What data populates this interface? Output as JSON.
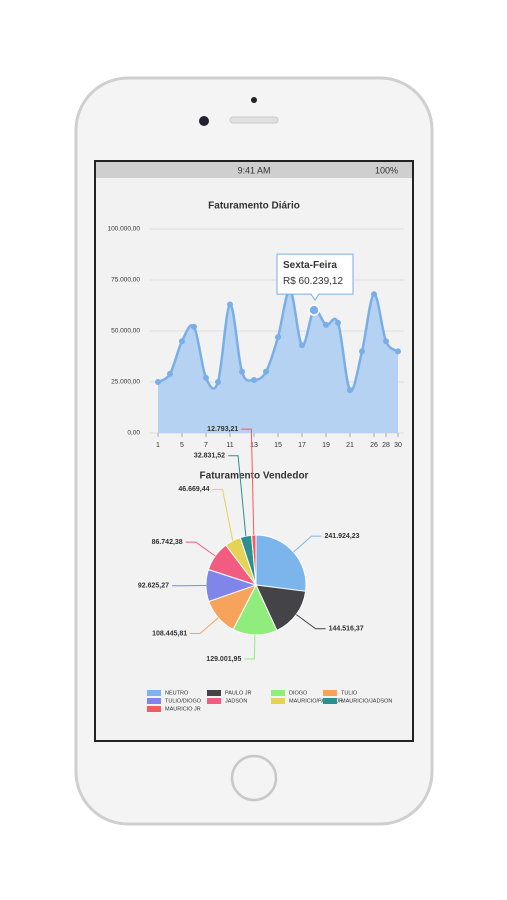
{
  "status_bar": {
    "time": "9:41 AM",
    "battery": "100%"
  },
  "chart_data": [
    {
      "type": "line",
      "title": "Faturamento Diário",
      "color": "#7aaee6",
      "fill": "#b5d2f2",
      "grid": true,
      "categories": [
        "1",
        null,
        "5",
        null,
        "7",
        null,
        "11",
        null,
        "13",
        null,
        "15",
        null,
        "17",
        null,
        "19",
        null,
        "21",
        null,
        "26",
        "28",
        "30"
      ],
      "values": [
        25000,
        29000,
        45000,
        52000,
        27000,
        25000,
        63000,
        30000,
        26000,
        30000,
        47000,
        70000,
        43000,
        60239.12,
        53000,
        54000,
        21000,
        40000,
        68000,
        45000,
        40000
      ],
      "ylim": [
        0,
        100000
      ],
      "yticks": [
        {
          "value": 0,
          "label": "0,00"
        },
        {
          "value": 25000,
          "label": "25.000,00"
        },
        {
          "value": 50000,
          "label": "50.000,00"
        },
        {
          "value": 75000,
          "label": "75.000,00"
        },
        {
          "value": 100000,
          "label": "100.000,00"
        }
      ],
      "tooltip": {
        "title": "Sexta-Feira",
        "text": "R$ 60.239,12"
      }
    },
    {
      "type": "pie",
      "title": "Faturamento Vendedor",
      "categories": [
        "NEUTRO",
        "PAULO JR",
        "DIOGO",
        "TULIO",
        "TULIO/DIOGO",
        "JADSON",
        "MAURICIO/PAULOJR",
        "MAURICIO/JADSON",
        "MAURICIO JR"
      ],
      "values": [
        241924.23,
        144516.37,
        129001.95,
        108445.81,
        92625.27,
        86742.38,
        46669.44,
        32831.52,
        12793.21
      ],
      "value_labels": [
        "241.924,23",
        "144.516,37",
        "129.001,95",
        "108.445,81",
        "92.625,27",
        "86.742,38",
        "46.669,44",
        "32.831,52",
        "12.793,21"
      ],
      "colors": [
        "#7cb5ec",
        "#434348",
        "#90ed7d",
        "#f7a35c",
        "#8085e9",
        "#f15c80",
        "#e4d354",
        "#2b908f",
        "#f45b5b"
      ]
    }
  ]
}
